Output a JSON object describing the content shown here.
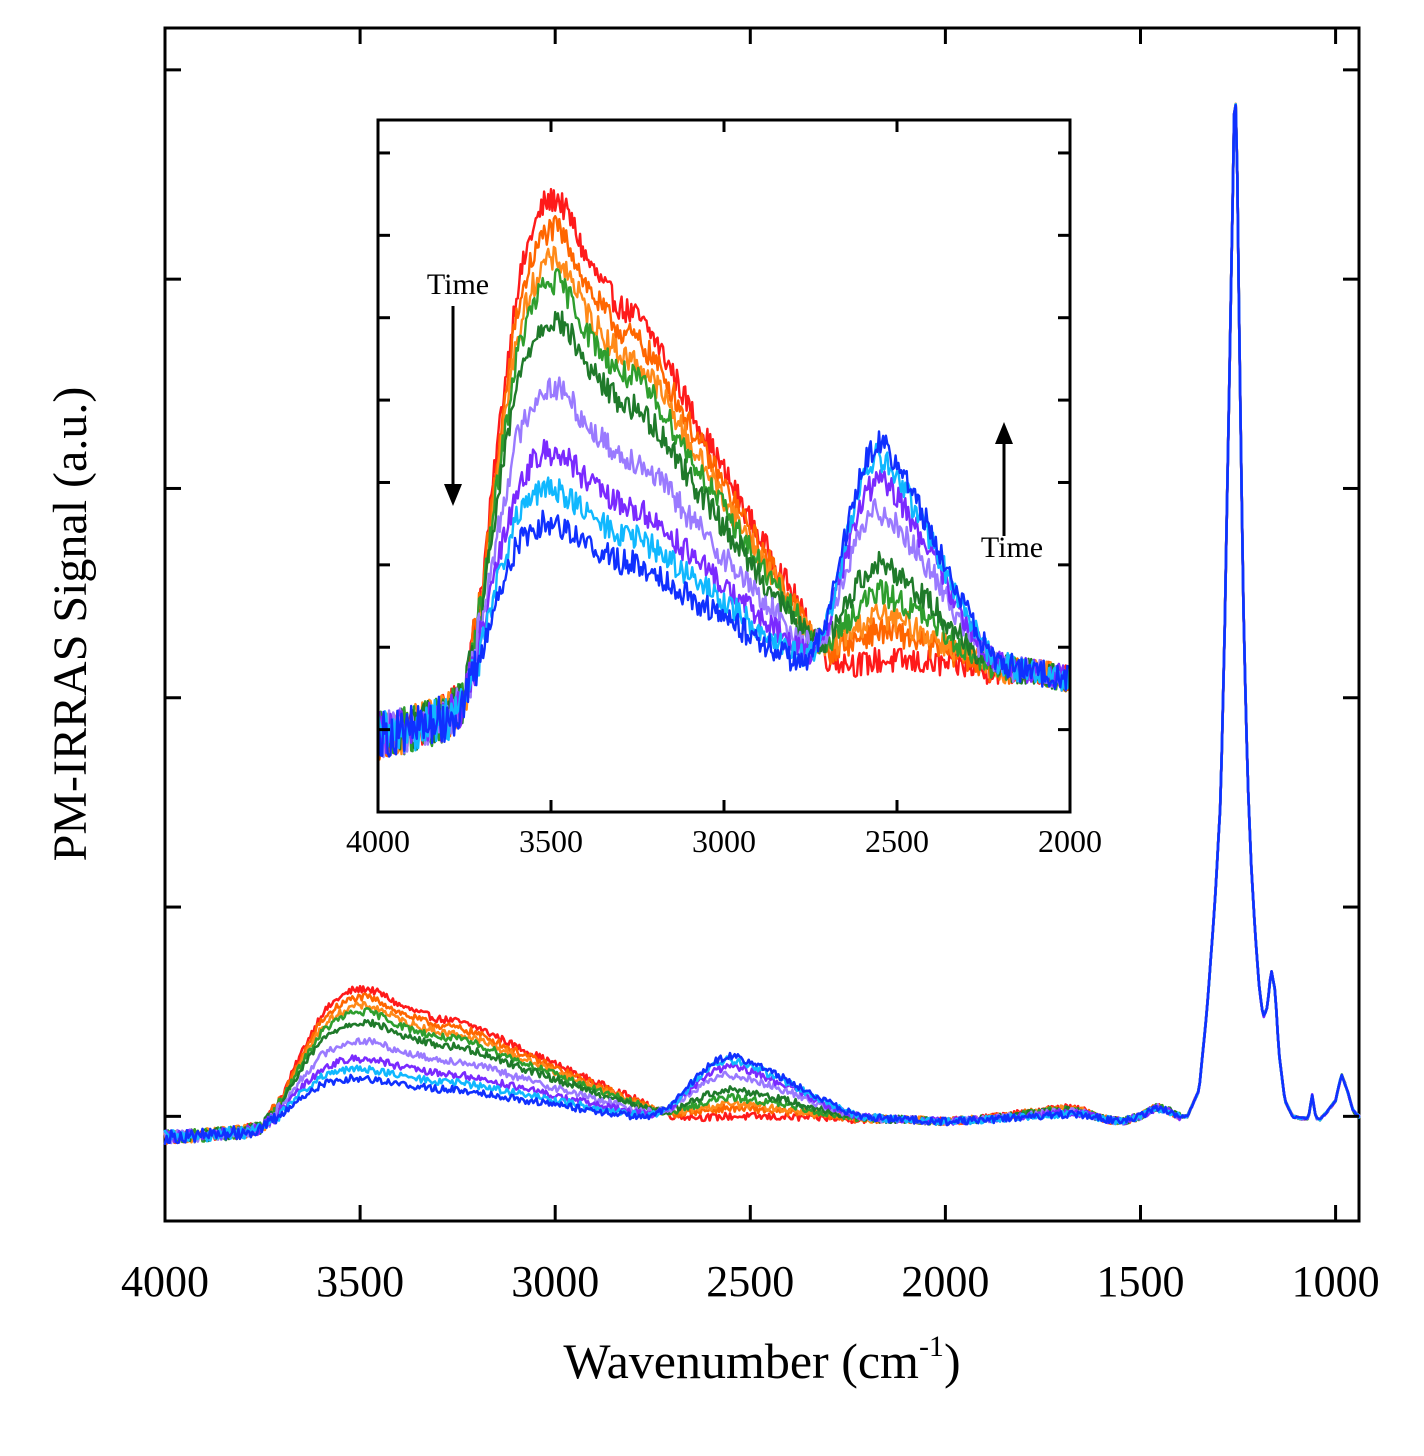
{
  "chart_data": [
    {
      "id": "main",
      "type": "line",
      "xlabel": "Wavenumber (cm",
      "xlabel_sup": "-1",
      "xlabel_end": ")",
      "ylabel": "PM-IRRAS Signal (a.u.)",
      "xlim": [
        4000,
        940
      ],
      "x_reversed": true,
      "ylim": [
        0,
        11.4
      ],
      "y_tick_labels_shown": false,
      "x_ticks": [
        4000,
        3500,
        3000,
        2500,
        2000,
        1500,
        1000
      ],
      "x_tick_labels": [
        "4000",
        "3500",
        "3000",
        "2500",
        "2000",
        "1500",
        "1000"
      ],
      "y_ticks": [
        1,
        3,
        5,
        7,
        9,
        11
      ],
      "grid": false,
      "legend": "none",
      "series_count": 9,
      "series_colors": [
        "#ff1a1a",
        "#ff6600",
        "#ff8a1a",
        "#2e9e2e",
        "#1f7a2a",
        "#9a7aff",
        "#7a2aff",
        "#10b8ff",
        "#1030ff"
      ],
      "series_shared_points": {
        "x": [
          4000,
          3900,
          3800,
          3750,
          3700,
          3650,
          3600,
          3560,
          3520,
          3480,
          3440,
          3400,
          3350,
          3300,
          3250,
          3200,
          3150,
          3100,
          3000,
          2900,
          2800,
          2750,
          2700,
          2650,
          2600,
          2560,
          2520,
          2480,
          2440,
          2400,
          2350,
          2300,
          2250,
          2200,
          2150,
          2100,
          2000,
          1900,
          1800,
          1700,
          1650,
          1600,
          1550,
          1500,
          1460,
          1430,
          1400,
          1380,
          1350,
          1330,
          1310,
          1295,
          1285,
          1275,
          1265,
          1258,
          1252,
          1245,
          1235,
          1225,
          1215,
          1205,
          1195,
          1185,
          1175,
          1165,
          1155,
          1145,
          1130,
          1110,
          1090,
          1070,
          1060,
          1050,
          1040,
          1020,
          1000,
          985,
          970,
          955,
          940
        ],
        "base": [
          0.8,
          0.82,
          0.85,
          0.87,
          0.95,
          1.0,
          1.02,
          1.02,
          1.01,
          1.0,
          1.0,
          0.99,
          0.99,
          0.98,
          0.98,
          0.97,
          0.97,
          0.96,
          0.95,
          0.94,
          0.93,
          0.93,
          0.94,
          0.96,
          0.97,
          0.98,
          0.98,
          0.98,
          0.98,
          0.98,
          0.98,
          0.98,
          0.97,
          0.97,
          0.97,
          0.97,
          0.95,
          0.96,
          0.97,
          0.99,
          1.0,
          0.98,
          0.95,
          1.0,
          1.07,
          1.06,
          1.0,
          1.0,
          1.25,
          2.0,
          3.0,
          4.0,
          5.5,
          7.5,
          9.5,
          11.0,
          10.0,
          8.0,
          5.6,
          4.2,
          3.3,
          2.7,
          2.2,
          1.95,
          2.05,
          2.4,
          2.2,
          1.6,
          1.15,
          1.0,
          0.98,
          0.98,
          1.2,
          0.98,
          0.97,
          1.05,
          1.15,
          1.4,
          1.25,
          1.05,
          1.0
        ],
        "peak_oh_profile": [
          0,
          0,
          0,
          0.03,
          0.2,
          0.5,
          0.78,
          0.9,
          0.98,
          1.0,
          0.95,
          0.88,
          0.82,
          0.78,
          0.76,
          0.72,
          0.65,
          0.58,
          0.45,
          0.32,
          0.2,
          0.12,
          0.05,
          0.02,
          0,
          0,
          0,
          0,
          0,
          0,
          0,
          0,
          0,
          0,
          0,
          0,
          0,
          0.02,
          0.05,
          0.08,
          0.05,
          0,
          0,
          0,
          0.02,
          0,
          0,
          0,
          0,
          0,
          0,
          0,
          0,
          0,
          0,
          0,
          0,
          0,
          0,
          0,
          0,
          0,
          0,
          0,
          0,
          0,
          0,
          0,
          0,
          0,
          0,
          0,
          0,
          0,
          0,
          0,
          0,
          0,
          0,
          0,
          0
        ],
        "peak_od_profile": [
          0,
          0,
          0,
          0,
          0,
          0,
          0,
          0,
          0,
          0,
          0,
          0,
          0,
          0,
          0,
          0,
          0,
          0,
          0,
          0,
          0,
          0.05,
          0.25,
          0.6,
          0.9,
          1.0,
          0.95,
          0.85,
          0.72,
          0.6,
          0.42,
          0.25,
          0.12,
          0.04,
          0.01,
          0,
          0,
          0,
          0,
          0,
          0,
          0,
          0,
          0,
          0,
          0,
          0,
          0,
          0,
          0,
          0,
          0,
          0,
          0,
          0,
          0,
          0,
          0,
          0,
          0,
          0,
          0,
          0,
          0,
          0,
          0,
          0,
          0,
          0,
          0,
          0,
          0,
          0,
          0,
          0,
          0,
          0,
          0,
          0,
          0,
          0
        ]
      },
      "series": [
        {
          "oh_amplitude": 1.22,
          "od_amplitude": 0.02,
          "noise": 0.035
        },
        {
          "oh_amplitude": 1.14,
          "od_amplitude": 0.1,
          "noise": 0.035
        },
        {
          "oh_amplitude": 1.06,
          "od_amplitude": 0.14,
          "noise": 0.035
        },
        {
          "oh_amplitude": 1.0,
          "od_amplitude": 0.2,
          "noise": 0.035
        },
        {
          "oh_amplitude": 0.9,
          "od_amplitude": 0.28,
          "noise": 0.035
        },
        {
          "oh_amplitude": 0.72,
          "od_amplitude": 0.42,
          "noise": 0.035
        },
        {
          "oh_amplitude": 0.55,
          "od_amplitude": 0.5,
          "noise": 0.035
        },
        {
          "oh_amplitude": 0.45,
          "od_amplitude": 0.56,
          "noise": 0.035
        },
        {
          "oh_amplitude": 0.36,
          "od_amplitude": 0.6,
          "noise": 0.035
        }
      ]
    },
    {
      "id": "inset",
      "type": "line",
      "xlim": [
        4000,
        2000
      ],
      "x_reversed": true,
      "ylim": [
        0,
        8.4
      ],
      "y_tick_labels_shown": false,
      "x_ticks": [
        4000,
        3500,
        3000,
        2500,
        2000
      ],
      "x_tick_labels": [
        "4000",
        "3500",
        "3000",
        "2500",
        "2000"
      ],
      "y_ticks": [
        1,
        2,
        3,
        4,
        5,
        6,
        7,
        8
      ],
      "grid": false,
      "annotations": [
        {
          "text": "Time",
          "arrow": "down",
          "near_x": 3780
        },
        {
          "text": "Time",
          "arrow": "up",
          "near_x": 2200
        }
      ]
    }
  ]
}
